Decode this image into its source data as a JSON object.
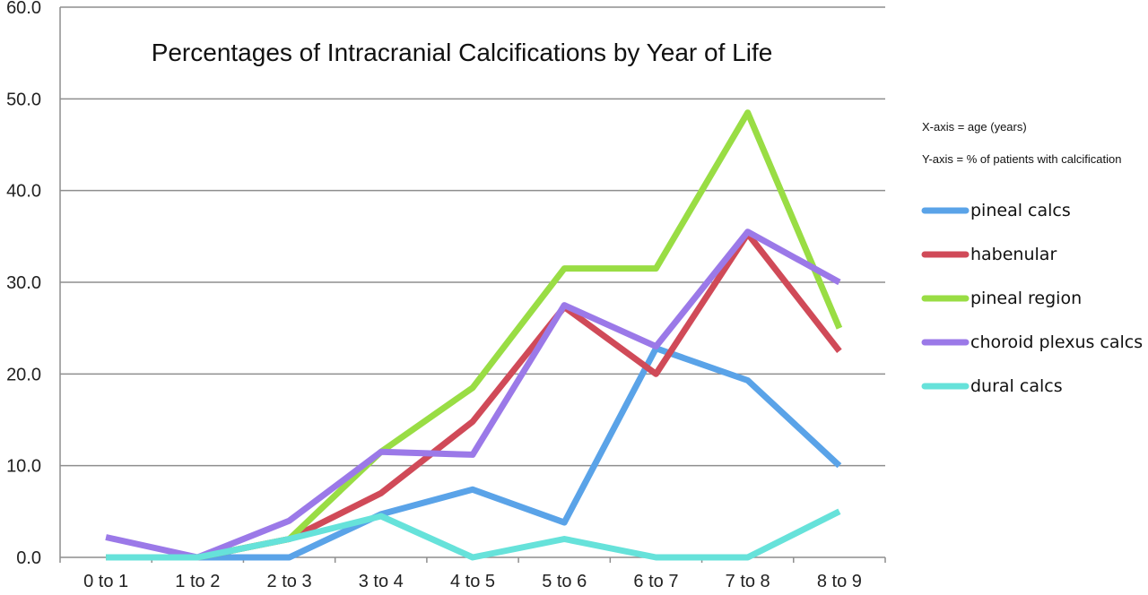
{
  "chart_data": {
    "type": "line",
    "title": "Percentages of Intracranial Calcifications by Year of Life",
    "categories": [
      "0 to 1",
      "1 to 2",
      "2 to 3",
      "3 to 4",
      "4 to 5",
      "5 to 6",
      "6 to 7",
      "7 to 8",
      "8 to 9"
    ],
    "y_ticks": [
      "0.0",
      "10.0",
      "20.0",
      "30.0",
      "40.0",
      "50.0",
      "60.0"
    ],
    "ylim": [
      0,
      60
    ],
    "grid": true,
    "legend_position": "right",
    "notes": [
      "X-axis = age (years)",
      "Y-axis = % of patients with calcification"
    ],
    "series": [
      {
        "name": "pineal calcs",
        "color": "#5aa3e8",
        "values": [
          0,
          0,
          0,
          4.7,
          7.4,
          3.8,
          22.8,
          19.3,
          10.0
        ]
      },
      {
        "name": "habenular",
        "color": "#d04a58",
        "values": [
          0,
          0,
          2.0,
          7.0,
          14.8,
          27.3,
          20.0,
          35.3,
          22.5
        ]
      },
      {
        "name": "pineal region",
        "color": "#99dd44",
        "values": [
          0,
          0,
          2.0,
          11.5,
          18.5,
          31.5,
          31.5,
          48.5,
          25.0
        ]
      },
      {
        "name": "choroid plexus calcs",
        "color": "#9b79e8",
        "values": [
          2.2,
          0,
          4.0,
          11.5,
          11.2,
          27.5,
          23.0,
          35.5,
          30.0
        ]
      },
      {
        "name": "dural calcs",
        "color": "#66e2da",
        "values": [
          0,
          0,
          2.0,
          4.5,
          0,
          2.0,
          0,
          0,
          5.0
        ]
      }
    ]
  }
}
